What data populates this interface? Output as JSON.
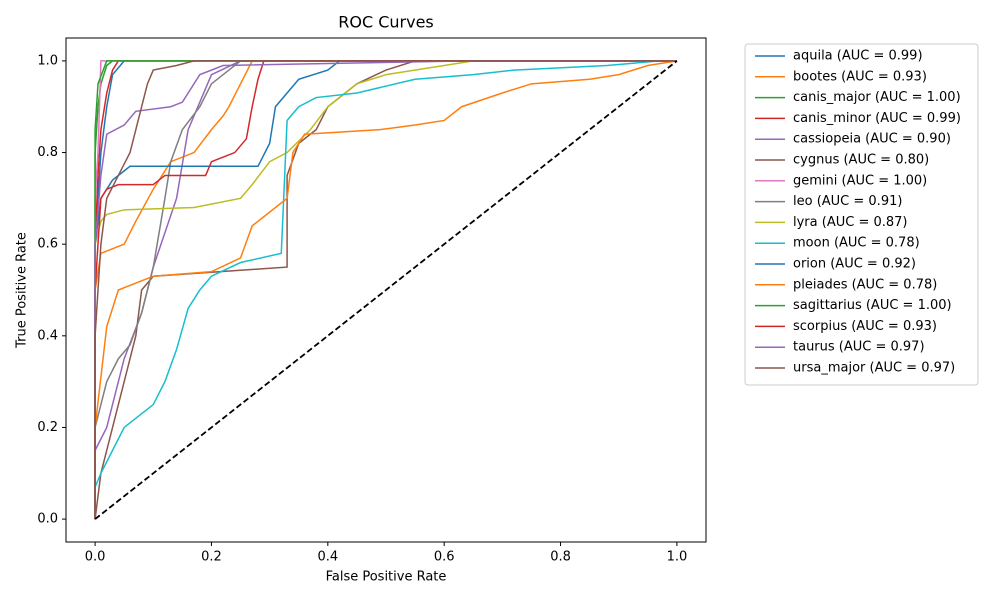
{
  "chart_data": {
    "type": "line",
    "title": "ROC Curves",
    "x_label": "False Positive Rate",
    "y_label": "True Positive Rate",
    "xlim": [
      -0.05,
      1.05
    ],
    "ylim": [
      -0.05,
      1.05
    ],
    "xticks": [
      {
        "value": 0,
        "label": "0.0"
      },
      {
        "value": 0.2,
        "label": "0.2"
      },
      {
        "value": 0.4,
        "label": "0.4"
      },
      {
        "value": 0.6,
        "label": "0.6"
      },
      {
        "value": 0.8,
        "label": "0.8"
      },
      {
        "value": 1,
        "label": "1.0"
      }
    ],
    "yticks": [
      {
        "value": 0,
        "label": "0.0"
      },
      {
        "value": 0.2,
        "label": "0.2"
      },
      {
        "value": 0.4,
        "label": "0.4"
      },
      {
        "value": 0.6,
        "label": "0.6"
      },
      {
        "value": 0.8,
        "label": "0.8"
      },
      {
        "value": 1,
        "label": "1.0"
      }
    ],
    "reference_line": {
      "x": [
        0,
        1
      ],
      "values": [
        0,
        1
      ],
      "color": "#000000",
      "dashed": true
    },
    "legend_position": "outside-right",
    "series": [
      {
        "name": "aquila (AUC = 0.99)",
        "color": "#1f77b4",
        "x": [
          0,
          0,
          0.005,
          0.01,
          0.02,
          0.03,
          0.05,
          1
        ],
        "values": [
          0,
          0.6,
          0.7,
          0.8,
          0.9,
          0.97,
          1,
          1
        ]
      },
      {
        "name": "bootes (AUC = 0.93)",
        "color": "#ff7f0e",
        "x": [
          0,
          0,
          0.01,
          0.05,
          0.07,
          0.1,
          0.13,
          0.17,
          0.2,
          0.22,
          0.23,
          0.25,
          0.27,
          1
        ],
        "values": [
          0,
          0.5,
          0.58,
          0.6,
          0.65,
          0.72,
          0.78,
          0.8,
          0.85,
          0.88,
          0.9,
          0.95,
          1,
          1
        ]
      },
      {
        "name": "canis_major (AUC = 1.00)",
        "color": "#2ca02c",
        "x": [
          0,
          0,
          0.005,
          0.01,
          0.02,
          0.03,
          1
        ],
        "values": [
          0,
          0.8,
          0.9,
          0.95,
          0.99,
          1,
          1
        ]
      },
      {
        "name": "canis_minor (AUC = 0.99)",
        "color": "#d62728",
        "x": [
          0,
          0,
          0.005,
          0.01,
          0.02,
          0.03,
          0.04,
          1
        ],
        "values": [
          0,
          0.6,
          0.75,
          0.85,
          0.93,
          0.98,
          1,
          1
        ]
      },
      {
        "name": "cassiopeia (AUC = 0.90)",
        "color": "#9467bd",
        "x": [
          0,
          0,
          0.02,
          0.05,
          0.08,
          0.1,
          0.14,
          0.16,
          0.2,
          0.25,
          1
        ],
        "values": [
          0,
          0.15,
          0.2,
          0.35,
          0.45,
          0.55,
          0.7,
          0.85,
          0.97,
          1,
          1
        ]
      },
      {
        "name": "cygnus (AUC = 0.80)",
        "color": "#8c564b",
        "x": [
          0,
          0.01,
          0.03,
          0.05,
          0.07,
          0.08,
          0.1,
          0.33,
          0.33,
          0.35,
          0.38,
          0.4,
          0.45,
          0.5,
          0.55,
          1
        ],
        "values": [
          0,
          0.1,
          0.2,
          0.3,
          0.4,
          0.5,
          0.53,
          0.55,
          0.75,
          0.82,
          0.85,
          0.9,
          0.95,
          0.98,
          1,
          1
        ]
      },
      {
        "name": "gemini (AUC = 1.00)",
        "color": "#e377c2",
        "x": [
          0,
          0,
          0.005,
          0.01,
          1
        ],
        "values": [
          0,
          0.7,
          0.8,
          1,
          1
        ]
      },
      {
        "name": "leo (AUC = 0.91)",
        "color": "#7f7f7f",
        "x": [
          0,
          0,
          0.01,
          0.02,
          0.04,
          0.06,
          0.08,
          0.1,
          0.12,
          0.13,
          0.15,
          0.18,
          0.2,
          0.23,
          0.25,
          1
        ],
        "values": [
          0,
          0.2,
          0.25,
          0.3,
          0.35,
          0.38,
          0.45,
          0.55,
          0.7,
          0.78,
          0.85,
          0.9,
          0.95,
          0.98,
          1,
          1
        ]
      },
      {
        "name": "lyra (AUC = 0.87)",
        "color": "#bcbd22",
        "x": [
          0,
          0,
          0.01,
          0.02,
          0.05,
          0.17,
          0.25,
          0.27,
          0.3,
          0.33,
          0.37,
          0.4,
          0.45,
          0.5,
          0.6,
          0.65,
          1
        ],
        "values": [
          0,
          0.6,
          0.65,
          0.665,
          0.675,
          0.68,
          0.7,
          0.73,
          0.78,
          0.8,
          0.85,
          0.9,
          0.95,
          0.97,
          0.99,
          1,
          1
        ]
      },
      {
        "name": "moon (AUC = 0.78)",
        "color": "#17becf",
        "x": [
          0,
          0,
          0.01,
          0.03,
          0.05,
          0.1,
          0.12,
          0.14,
          0.16,
          0.18,
          0.2,
          0.25,
          0.32,
          0.33,
          0.35,
          0.38,
          0.45,
          0.55,
          0.65,
          0.72,
          0.88,
          0.97,
          1
        ],
        "values": [
          0,
          0.07,
          0.1,
          0.15,
          0.2,
          0.25,
          0.3,
          0.37,
          0.46,
          0.5,
          0.53,
          0.56,
          0.58,
          0.87,
          0.9,
          0.92,
          0.93,
          0.96,
          0.97,
          0.98,
          0.99,
          1,
          1
        ]
      },
      {
        "name": "orion (AUC = 0.92)",
        "color": "#1f77b4",
        "x": [
          0,
          0,
          0.01,
          0.03,
          0.06,
          0.28,
          0.3,
          0.31,
          0.33,
          0.35,
          0.4,
          0.42,
          1
        ],
        "values": [
          0,
          0.6,
          0.7,
          0.74,
          0.77,
          0.77,
          0.82,
          0.9,
          0.93,
          0.96,
          0.98,
          1,
          1
        ]
      },
      {
        "name": "pleiades (AUC = 0.78)",
        "color": "#ff7f0e",
        "x": [
          0,
          0,
          0.02,
          0.04,
          0.08,
          0.1,
          0.2,
          0.25,
          0.27,
          0.3,
          0.33,
          0.34,
          0.36,
          0.49,
          0.55,
          0.6,
          0.63,
          0.7,
          0.75,
          0.85,
          0.9,
          0.95,
          1
        ],
        "values": [
          0,
          0.2,
          0.42,
          0.5,
          0.52,
          0.53,
          0.54,
          0.57,
          0.64,
          0.67,
          0.7,
          0.8,
          0.84,
          0.85,
          0.86,
          0.87,
          0.9,
          0.93,
          0.95,
          0.96,
          0.97,
          0.99,
          1
        ]
      },
      {
        "name": "sagittarius (AUC = 1.00)",
        "color": "#2ca02c",
        "x": [
          0,
          0,
          0.005,
          0.02,
          1
        ],
        "values": [
          0,
          0.85,
          0.95,
          1,
          1
        ]
      },
      {
        "name": "scorpius (AUC = 0.93)",
        "color": "#d62728",
        "x": [
          0,
          0,
          0.01,
          0.02,
          0.04,
          0.1,
          0.12,
          0.19,
          0.2,
          0.24,
          0.26,
          0.27,
          0.28,
          0.29,
          1
        ],
        "values": [
          0,
          0.5,
          0.7,
          0.72,
          0.73,
          0.73,
          0.75,
          0.75,
          0.78,
          0.8,
          0.83,
          0.9,
          0.96,
          1,
          1
        ]
      },
      {
        "name": "taurus (AUC = 0.97)",
        "color": "#9467bd",
        "x": [
          0,
          0,
          0.01,
          0.02,
          0.05,
          0.07,
          0.13,
          0.15,
          0.18,
          0.22,
          0.64,
          1
        ],
        "values": [
          0,
          0.6,
          0.75,
          0.84,
          0.86,
          0.89,
          0.9,
          0.91,
          0.97,
          0.99,
          1,
          1
        ]
      },
      {
        "name": "ursa_major (AUC = 0.97)",
        "color": "#8c564b",
        "x": [
          0,
          0,
          0.01,
          0.02,
          0.04,
          0.06,
          0.08,
          0.09,
          0.1,
          0.14,
          0.17,
          1
        ],
        "values": [
          0,
          0.4,
          0.6,
          0.7,
          0.75,
          0.8,
          0.9,
          0.95,
          0.98,
          0.99,
          1,
          1
        ]
      }
    ]
  }
}
